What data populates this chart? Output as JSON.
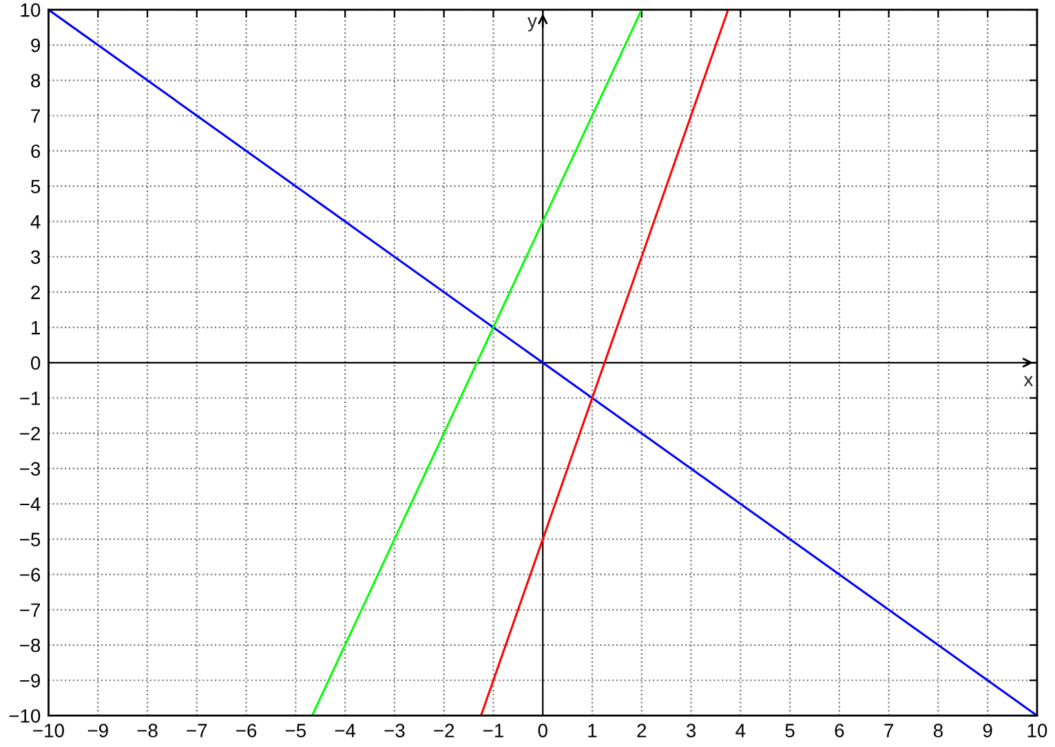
{
  "chart_data": {
    "type": "line",
    "series": [
      {
        "color": "#0000ff",
        "x": [
          -10,
          10
        ],
        "values": [
          10,
          -10
        ]
      },
      {
        "color": "#00ff00",
        "x": [
          -4.667,
          2
        ],
        "values": [
          -10,
          10
        ]
      },
      {
        "color": "#ff0000",
        "x": [
          -1.25,
          3.75
        ],
        "values": [
          -10,
          10
        ]
      }
    ],
    "xlim": [
      -10,
      10
    ],
    "ylim": [
      -10,
      10
    ],
    "xticks": [
      {
        "value": -10,
        "label": "−10"
      },
      {
        "value": -9,
        "label": "−9"
      },
      {
        "value": -8,
        "label": "−8"
      },
      {
        "value": -7,
        "label": "−7"
      },
      {
        "value": -6,
        "label": "−6"
      },
      {
        "value": -5,
        "label": "−5"
      },
      {
        "value": -4,
        "label": "−4"
      },
      {
        "value": -3,
        "label": "−3"
      },
      {
        "value": -2,
        "label": "−2"
      },
      {
        "value": -1,
        "label": "−1"
      },
      0,
      1,
      2,
      3,
      4,
      5,
      6,
      7,
      8,
      9,
      10
    ],
    "yticks": [
      {
        "value": -10,
        "label": "−10"
      },
      {
        "value": -9,
        "label": "−9"
      },
      {
        "value": -8,
        "label": "−8"
      },
      {
        "value": -7,
        "label": "−7"
      },
      {
        "value": -6,
        "label": "−6"
      },
      {
        "value": -5,
        "label": "−5"
      },
      {
        "value": -4,
        "label": "−4"
      },
      {
        "value": -3,
        "label": "−3"
      },
      {
        "value": -2,
        "label": "−2"
      },
      {
        "value": -1,
        "label": "−1"
      },
      0,
      1,
      2,
      3,
      4,
      5,
      6,
      7,
      8,
      9,
      10
    ],
    "ref_lines": [
      {
        "axis": "x",
        "value": 0,
        "label": "y",
        "color": "#000000"
      },
      {
        "axis": "y",
        "value": 0,
        "label": "x",
        "color": "#000000"
      }
    ],
    "grid": true,
    "legend": false,
    "line_style": "solid",
    "marker": "none"
  }
}
